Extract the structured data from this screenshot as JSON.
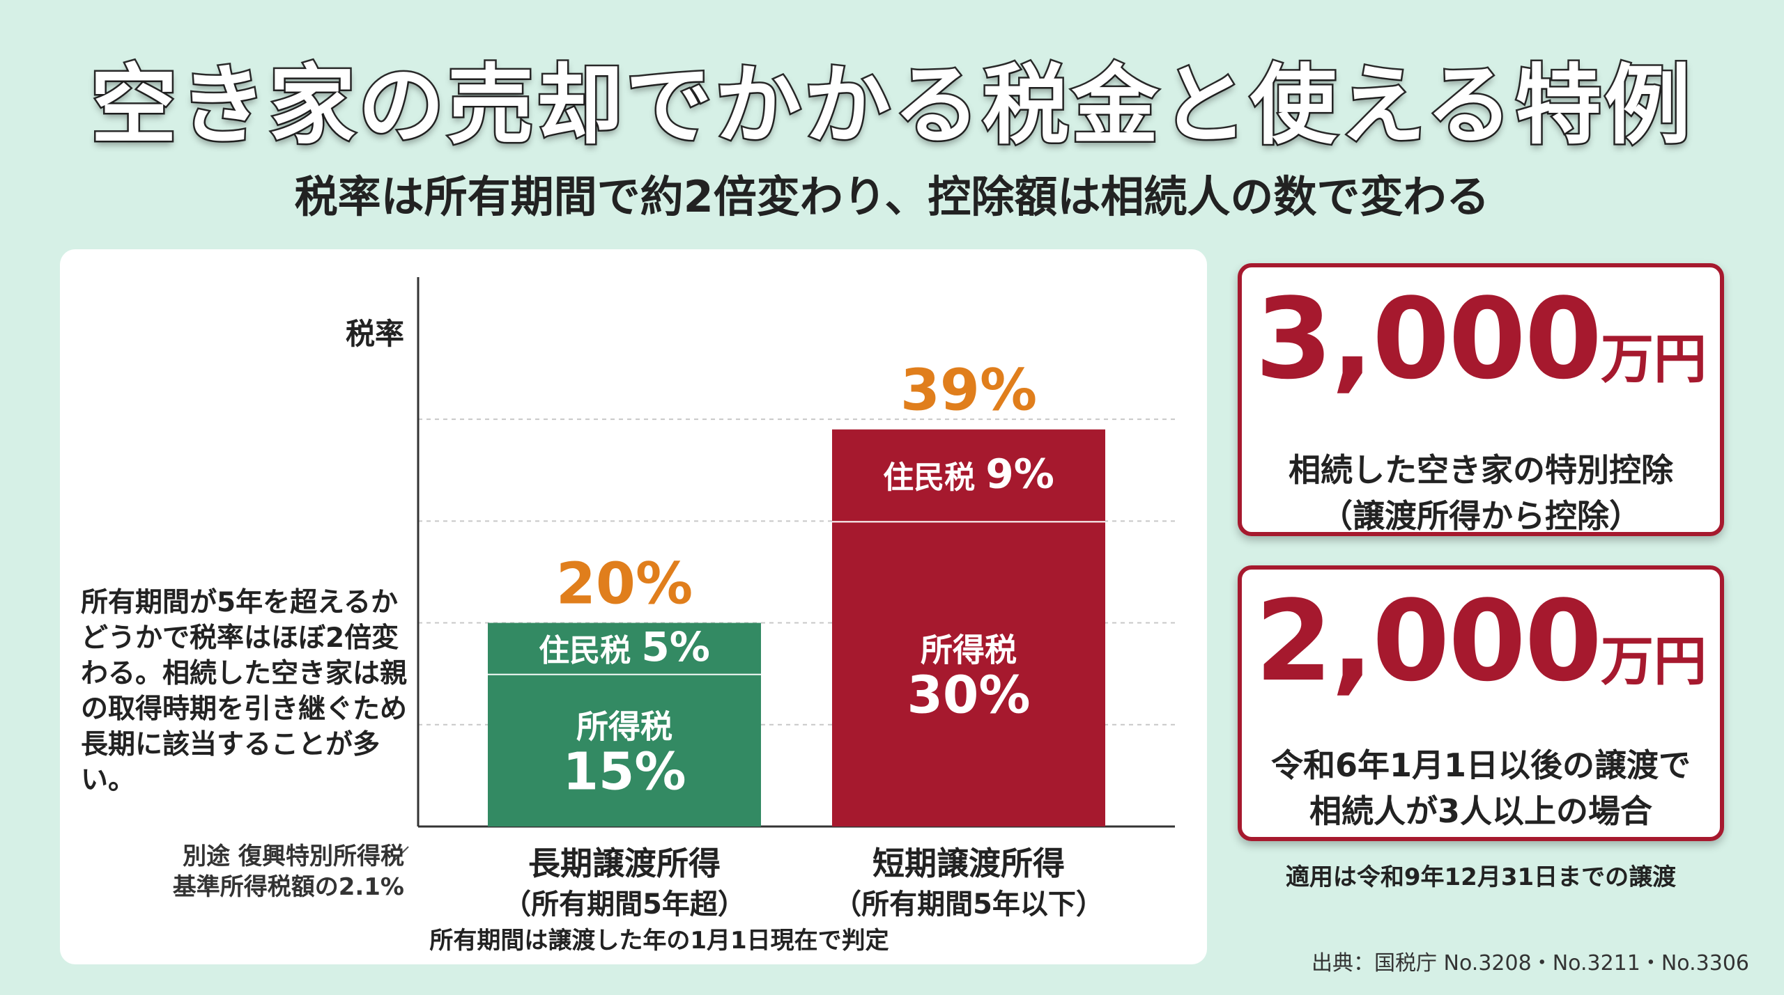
{
  "title": "空き家の売却でかかる税金と使える特例",
  "subtitle": "税率は所有期間で約2倍変わり、控除額は相続人の数で変わる",
  "chart_data": {
    "type": "bar",
    "stacked": true,
    "ylabel": "税率",
    "ylim": [
      0,
      45
    ],
    "grid": true,
    "categories": [
      {
        "label": "長期譲渡所得",
        "sublabel": "（所有期間5年超）"
      },
      {
        "label": "短期譲渡所得",
        "sublabel": "（所有期間5年以下）"
      }
    ],
    "totals": [
      {
        "value": 20,
        "label": "20%"
      },
      {
        "value": 39,
        "label": "39%"
      }
    ],
    "series": [
      {
        "name": "所得税",
        "values": [
          15,
          30
        ],
        "value_labels": [
          "15%",
          "30%"
        ]
      },
      {
        "name": "住民税",
        "values": [
          5,
          9
        ],
        "value_labels": [
          "5%",
          "9%"
        ]
      }
    ],
    "colors": {
      "long": "#338a63",
      "short": "#a6192e",
      "total_label": "#e07e1c"
    },
    "xnote": "所有期間は譲渡した年の1月1日現在で判定"
  },
  "side_note": "所有期間が5年を超えるかどうかで税率はほぼ2倍変わる。相続した空き家は親の取得時期を引き継ぐため長期に該当することが多い。",
  "foot_note": {
    "line1": "別途 復興特別所得税",
    "line2": "基準所得税額の2.1%"
  },
  "cards": [
    {
      "amount": "3,000",
      "unit": "万円",
      "desc_line1": "相続した空き家の特別控除",
      "desc_line2": "（譲渡所得から控除）"
    },
    {
      "amount": "2,000",
      "unit": "万円",
      "desc_line1": "令和6年1月1日以後の譲渡で",
      "desc_line2": "相続人が3人以上の場合"
    }
  ],
  "apply_note": "適用は令和9年12月31日までの譲渡",
  "source": "出典：国税庁 No.3208・No.3211・No.3306",
  "colors": {
    "background": "#d6f0e6",
    "accent_red": "#a6192e",
    "accent_green": "#338a63",
    "accent_orange": "#e07e1c"
  }
}
